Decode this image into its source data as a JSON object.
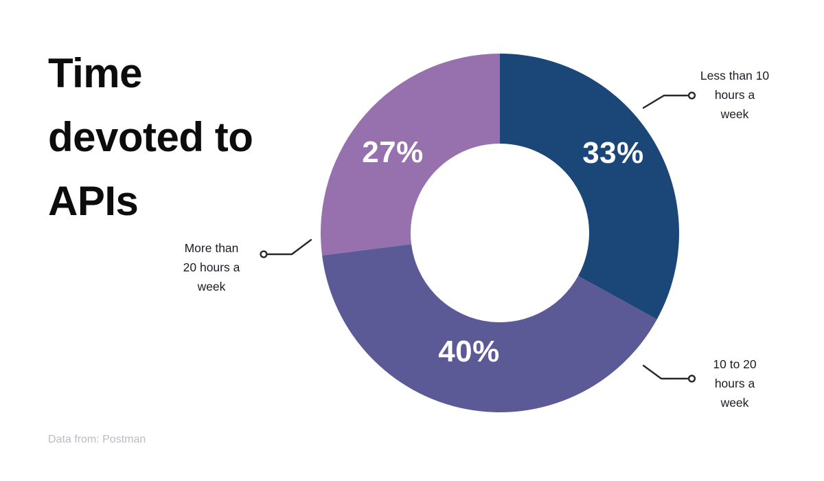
{
  "page": {
    "title": "Time devoted to APIs",
    "title_lines": [
      "Time",
      "devoted to",
      "APIs"
    ],
    "source_note": "Data from: Postman"
  },
  "chart_data": {
    "type": "pie",
    "subtype": "donut",
    "title": "Time devoted to APIs",
    "source_note": "Data from: Postman",
    "start_angle_deg": 0,
    "direction": "clockwise",
    "background_color": "#ffffff",
    "value_label_color": "#ffffff",
    "connector_color": "#25262e",
    "slices": [
      {
        "label": "Less than 10 hours a week",
        "label_lines": [
          "Less than 10",
          "hours a",
          "week"
        ],
        "value_pct": 33,
        "pct_label": "33%",
        "color": "#1a4678"
      },
      {
        "label": "10 to 20 hours a week",
        "label_lines": [
          "10 to 20",
          "hours a",
          "week"
        ],
        "value_pct": 40,
        "pct_label": "40%",
        "color": "#5b5a96"
      },
      {
        "label": "More than 20 hours a week",
        "label_lines": [
          "More than",
          "20 hours a",
          "week"
        ],
        "value_pct": 27,
        "pct_label": "27%",
        "color": "#9671ad"
      }
    ]
  }
}
